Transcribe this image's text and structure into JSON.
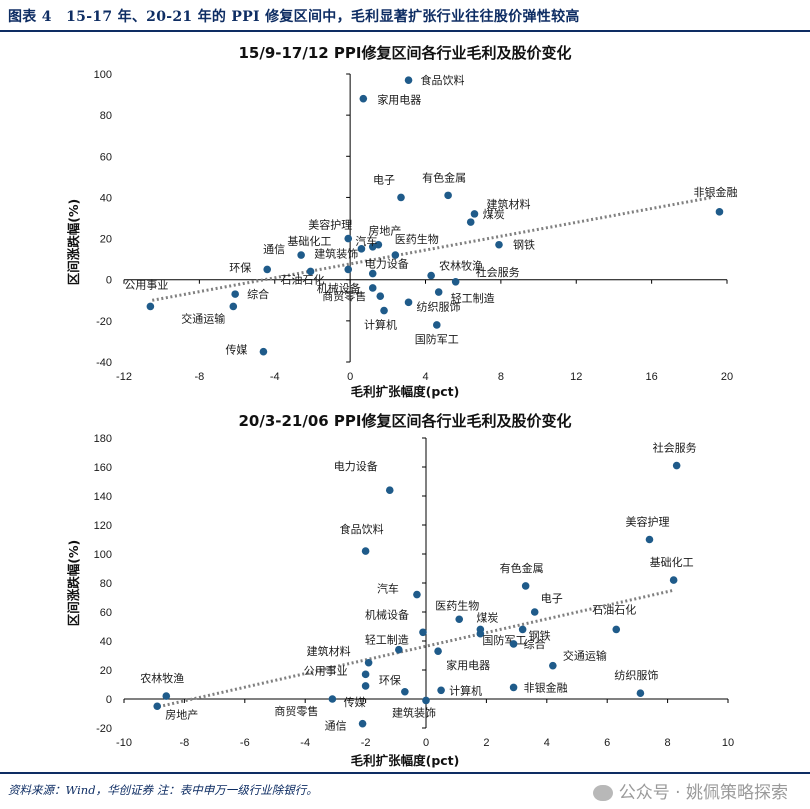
{
  "header": {
    "title": "图表 4　15-17 年、20-21 年的 PPI 修复区间中，毛利显著扩张行业往往股价弹性较高"
  },
  "footer": {
    "source": "资料来源：Wind，华创证券 注：表中申万一级行业除银行。",
    "watermark": "公众号 · 姚佩策略探索"
  },
  "colors": {
    "point": "#1f5b8a",
    "trend": "#808080",
    "accent": "#0e2d63"
  },
  "chart_data": [
    {
      "type": "scatter",
      "title": "15/9-17/12 PPI修复区间各行业毛利及股价变化",
      "xlabel": "毛利扩张幅度(pct)",
      "ylabel": "区间涨跌幅(%)",
      "xlim": [
        -12,
        20
      ],
      "ylim": [
        -40,
        100
      ],
      "xticks": [
        "-12",
        "-8",
        "-4",
        "0",
        "4",
        "8",
        "12",
        "16",
        "20"
      ],
      "yticks": [
        "100",
        "80",
        "60",
        "40",
        "20",
        "0",
        "-20",
        "-40"
      ],
      "trendline": {
        "x1": -10.5,
        "y1": -10,
        "x2": 19.2,
        "y2": 40
      },
      "points": [
        {
          "name": "食品饮料",
          "x": 3.1,
          "y": 97
        },
        {
          "name": "家用电器",
          "x": 0.7,
          "y": 88
        },
        {
          "name": "非银金融",
          "x": 19.6,
          "y": 33
        },
        {
          "name": "电子",
          "x": 2.7,
          "y": 40
        },
        {
          "name": "有色金属",
          "x": 5.2,
          "y": 41
        },
        {
          "name": "建筑材料",
          "x": 6.6,
          "y": 32
        },
        {
          "name": "煤炭",
          "x": 6.4,
          "y": 28
        },
        {
          "name": "钢铁",
          "x": 7.9,
          "y": 17
        },
        {
          "name": "美容护理",
          "x": -0.1,
          "y": 20
        },
        {
          "name": "房地产",
          "x": 1.5,
          "y": 17
        },
        {
          "name": "基础化工",
          "x": 0.6,
          "y": 15
        },
        {
          "name": "医药生物",
          "x": 1.2,
          "y": 16
        },
        {
          "name": "汽车",
          "x": 2.4,
          "y": 12
        },
        {
          "name": "通信",
          "x": -2.6,
          "y": 12
        },
        {
          "name": "建筑装饰",
          "x": -0.1,
          "y": 5
        },
        {
          "name": "环保",
          "x": -4.4,
          "y": 5
        },
        {
          "name": "石油石化",
          "x": -2.1,
          "y": 4
        },
        {
          "name": "电力设备",
          "x": 1.2,
          "y": 3
        },
        {
          "name": "农林牧渔",
          "x": 4.3,
          "y": 2
        },
        {
          "name": "社会服务",
          "x": 5.6,
          "y": -1
        },
        {
          "name": "公用事业",
          "x": -10.6,
          "y": -13
        },
        {
          "name": "综合",
          "x": -6.1,
          "y": -7
        },
        {
          "name": "交通运输",
          "x": -6.2,
          "y": -13
        },
        {
          "name": "机械设备",
          "x": 1.2,
          "y": -4
        },
        {
          "name": "商贸零售",
          "x": 1.6,
          "y": -8
        },
        {
          "name": "轻工制造",
          "x": 4.7,
          "y": -6
        },
        {
          "name": "纺织服饰",
          "x": 3.1,
          "y": -11
        },
        {
          "name": "计算机",
          "x": 1.8,
          "y": -15
        },
        {
          "name": "国防军工",
          "x": 4.6,
          "y": -22
        },
        {
          "name": "传媒",
          "x": -4.6,
          "y": -35
        }
      ]
    },
    {
      "type": "scatter",
      "title": "20/3-21/06 PPI修复区间各行业毛利及股价变化",
      "xlabel": "毛利扩张幅度(pct)",
      "ylabel": "区间涨跌幅(%)",
      "xlim": [
        -10,
        10
      ],
      "ylim": [
        -20,
        180
      ],
      "xticks": [
        "-10",
        "-8",
        "-6",
        "-4",
        "-2",
        "0",
        "2",
        "4",
        "6",
        "8",
        "10"
      ],
      "yticks": [
        "180",
        "160",
        "140",
        "120",
        "100",
        "80",
        "60",
        "40",
        "20",
        "0",
        "-20"
      ],
      "trendline": {
        "x1": -9.0,
        "y1": -6,
        "x2": 8.2,
        "y2": 75
      },
      "points": [
        {
          "name": "社会服务",
          "x": 8.3,
          "y": 161
        },
        {
          "name": "电力设备",
          "x": -1.2,
          "y": 144
        },
        {
          "name": "美容护理",
          "x": 7.4,
          "y": 110
        },
        {
          "name": "食品饮料",
          "x": -2.0,
          "y": 102
        },
        {
          "name": "基础化工",
          "x": 8.2,
          "y": 82
        },
        {
          "name": "有色金属",
          "x": 3.3,
          "y": 78
        },
        {
          "name": "汽车",
          "x": -0.3,
          "y": 72
        },
        {
          "name": "医药生物",
          "x": 1.1,
          "y": 55
        },
        {
          "name": "电子",
          "x": 3.6,
          "y": 60
        },
        {
          "name": "石油石化",
          "x": 6.3,
          "y": 48
        },
        {
          "name": "煤炭",
          "x": 1.8,
          "y": 48
        },
        {
          "name": "钢铁",
          "x": 3.2,
          "y": 48
        },
        {
          "name": "机械设备",
          "x": -0.1,
          "y": 46
        },
        {
          "name": "国防军工",
          "x": 1.8,
          "y": 45
        },
        {
          "name": "综合",
          "x": 2.9,
          "y": 38
        },
        {
          "name": "轻工制造",
          "x": -0.9,
          "y": 34
        },
        {
          "name": "建筑材料",
          "x": -1.9,
          "y": 25
        },
        {
          "name": "交通运输",
          "x": 4.2,
          "y": 23
        },
        {
          "name": "家用电器",
          "x": 0.4,
          "y": 33
        },
        {
          "name": "公用事业",
          "x": -2.0,
          "y": 17
        },
        {
          "name": "环保",
          "x": -0.7,
          "y": 5
        },
        {
          "name": "计算机",
          "x": 0.5,
          "y": 6
        },
        {
          "name": "非银金融",
          "x": 2.9,
          "y": 8
        },
        {
          "name": "纺织服饰",
          "x": 7.1,
          "y": 4
        },
        {
          "name": "农林牧渔",
          "x": -8.6,
          "y": 2
        },
        {
          "name": "传媒",
          "x": -2.0,
          "y": 9
        },
        {
          "name": "商贸零售",
          "x": -3.1,
          "y": 0
        },
        {
          "name": "建筑装饰",
          "x": 0.0,
          "y": -1
        },
        {
          "name": "房地产",
          "x": -8.9,
          "y": -5
        },
        {
          "name": "通信",
          "x": -2.1,
          "y": -17
        }
      ]
    }
  ]
}
